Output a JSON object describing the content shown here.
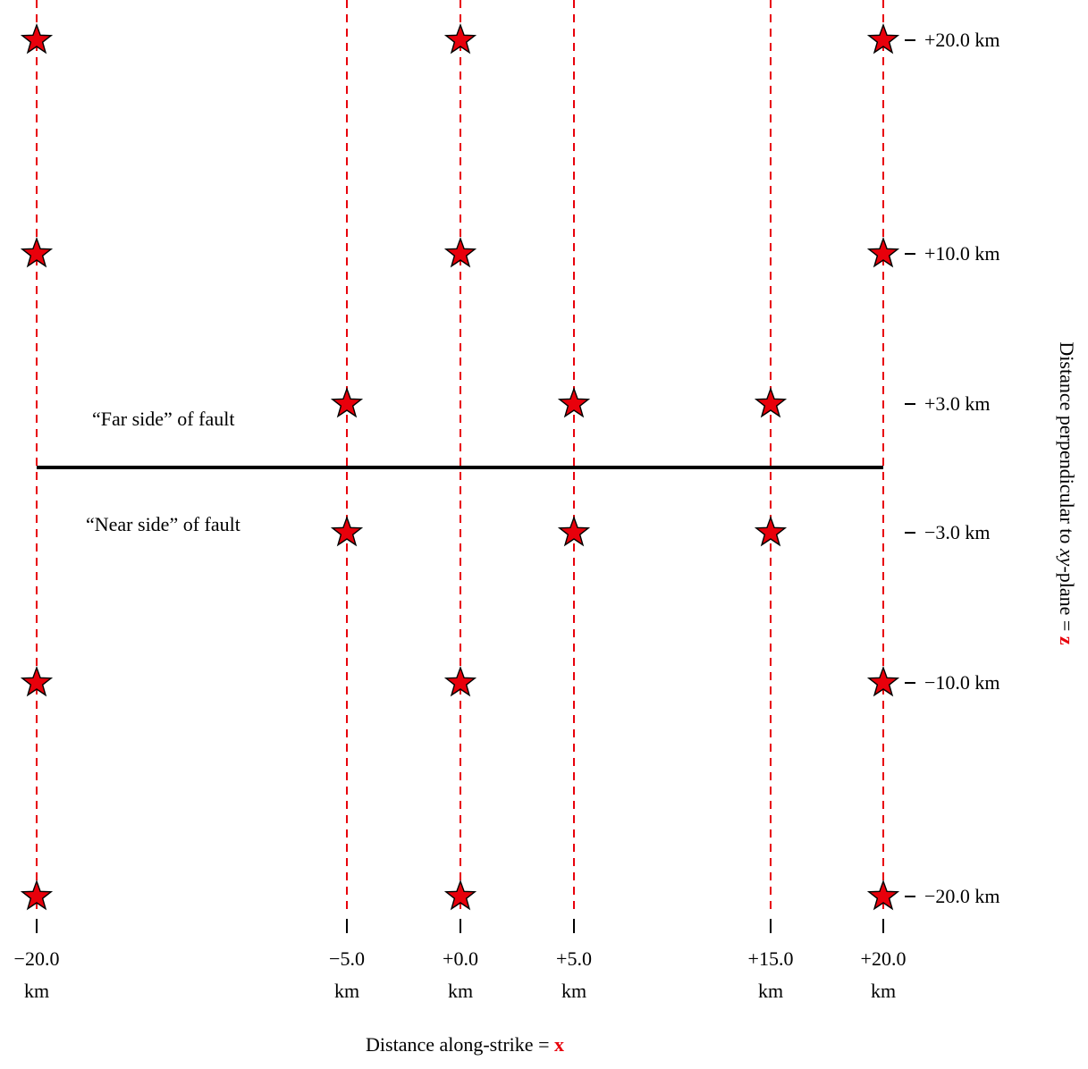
{
  "diagram": {
    "far_side_label": "“Far side” of fault",
    "near_side_label": "“Near side” of fault",
    "x_axis_label": {
      "prefix": "Distance along-strike = ",
      "var": "x"
    },
    "z_axis_label": {
      "prefix": "Distance perpendicular to ",
      "italic": "xy",
      "middle": "-plane = ",
      "var": "z"
    },
    "x_ticks": [
      {
        "value": -20,
        "label": "−20.0",
        "unit": "km"
      },
      {
        "value": -5,
        "label": "−5.0",
        "unit": "km"
      },
      {
        "value": 0,
        "label": "+0.0",
        "unit": "km"
      },
      {
        "value": 5,
        "label": "+5.0",
        "unit": "km"
      },
      {
        "value": 15,
        "label": "+15.0",
        "unit": "km"
      },
      {
        "value": 20,
        "label": "+20.0",
        "unit": "km"
      }
    ],
    "z_ticks": [
      {
        "value": 20,
        "label": "+20.0 km"
      },
      {
        "value": 10,
        "label": "+10.0 km"
      },
      {
        "value": 3,
        "label": "+3.0 km"
      },
      {
        "value": -3,
        "label": "−3.0 km"
      },
      {
        "value": -10,
        "label": "−10.0 km"
      },
      {
        "value": -20,
        "label": "−20.0 km"
      }
    ],
    "stations": [
      {
        "x": -20,
        "z": 20
      },
      {
        "x": 0,
        "z": 20
      },
      {
        "x": 20,
        "z": 20
      },
      {
        "x": -20,
        "z": 10
      },
      {
        "x": 0,
        "z": 10
      },
      {
        "x": 20,
        "z": 10
      },
      {
        "x": -5,
        "z": 3
      },
      {
        "x": 5,
        "z": 3
      },
      {
        "x": 15,
        "z": 3
      },
      {
        "x": -5,
        "z": -3
      },
      {
        "x": 5,
        "z": -3
      },
      {
        "x": 15,
        "z": -3
      },
      {
        "x": -20,
        "z": -10
      },
      {
        "x": 0,
        "z": -10
      },
      {
        "x": 20,
        "z": -10
      },
      {
        "x": -20,
        "z": -20
      },
      {
        "x": 0,
        "z": -20
      },
      {
        "x": 20,
        "z": -20
      }
    ],
    "fault": {
      "x_start": -20,
      "x_end": 20,
      "z": 0
    },
    "colors": {
      "station_fill": "#e8000b",
      "gridline": "#e8000b",
      "fault": "#000000",
      "axis_var": "#e8000b"
    }
  }
}
